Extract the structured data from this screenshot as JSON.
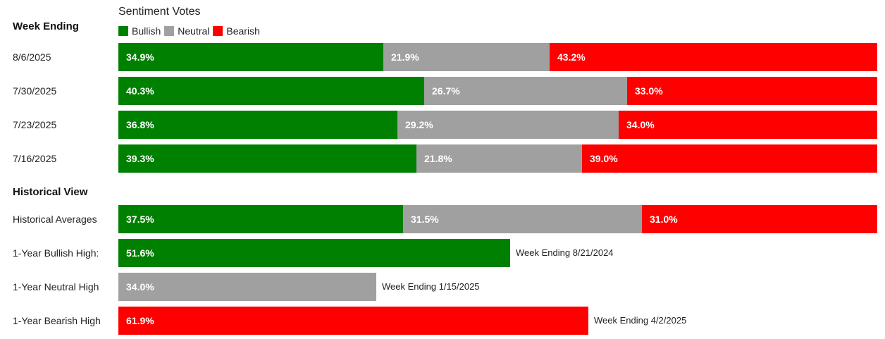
{
  "chart_data": {
    "type": "bar",
    "orientation": "horizontal",
    "stacked": true,
    "legend_title": "Sentiment Votes",
    "legend_placement": "top-left",
    "series": [
      {
        "name": "Bullish",
        "color": "#008000"
      },
      {
        "name": "Neutral",
        "color": "#a0a0a0"
      },
      {
        "name": "Bearish",
        "color": "#ff0000"
      }
    ],
    "weekly_header": "Week Ending",
    "weekly": [
      {
        "label": "8/6/2025",
        "values": [
          34.9,
          21.9,
          43.2
        ],
        "texts": [
          "34.9%",
          "21.9%",
          "43.2%"
        ]
      },
      {
        "label": "7/30/2025",
        "values": [
          40.3,
          26.7,
          33.0
        ],
        "texts": [
          "40.3%",
          "26.7%",
          "33.0%"
        ]
      },
      {
        "label": "7/23/2025",
        "values": [
          36.8,
          29.2,
          34.0
        ],
        "texts": [
          "36.8%",
          "29.2%",
          "34.0%"
        ]
      },
      {
        "label": "7/16/2025",
        "values": [
          39.3,
          21.8,
          39.0
        ],
        "texts": [
          "39.3%",
          "21.8%",
          "39.0%"
        ]
      }
    ],
    "historical_header": "Historical View",
    "historical": [
      {
        "label": "Historical Averages",
        "segments": [
          {
            "series": 0,
            "value": 37.5,
            "text": "37.5%"
          },
          {
            "series": 1,
            "value": 31.5,
            "text": "31.5%"
          },
          {
            "series": 2,
            "value": 31.0,
            "text": "31.0%"
          }
        ],
        "note": ""
      },
      {
        "label": "1-Year Bullish High:",
        "segments": [
          {
            "series": 0,
            "value": 51.6,
            "text": "51.6%"
          }
        ],
        "note": "Week Ending 8/21/2024"
      },
      {
        "label": "1-Year Neutral High",
        "segments": [
          {
            "series": 1,
            "value": 34.0,
            "text": "34.0%"
          }
        ],
        "note": "Week Ending 1/15/2025"
      },
      {
        "label": "1-Year Bearish High",
        "segments": [
          {
            "series": 2,
            "value": 61.9,
            "text": "61.9%"
          }
        ],
        "note": "Week Ending 4/2/2025"
      }
    ]
  }
}
